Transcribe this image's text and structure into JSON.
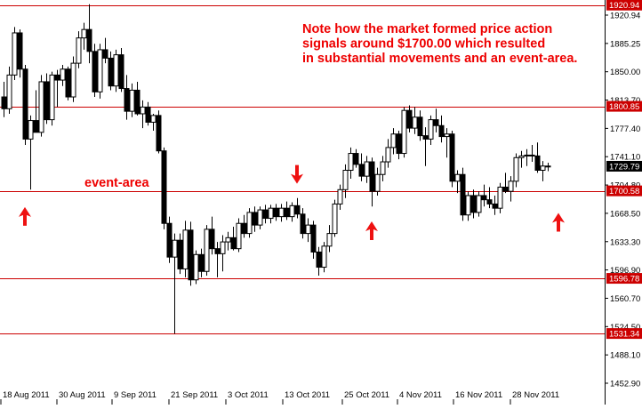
{
  "chart_data": {
    "type": "candlestick",
    "instrument_note": "",
    "x_tick_labels": [
      "18 Aug 2011",
      "30 Aug 2011",
      "9 Sep 2011",
      "21 Sep 2011",
      "3 Oct 2011",
      "13 Oct 2011",
      "25 Oct 2011",
      "4 Nov 2011",
      "16 Nov 2011",
      "28 Nov 2011"
    ],
    "y_tick_labels": [
      "1920.94",
      "1885.25",
      "1850.00",
      "1813.70",
      "1777.40",
      "1741.10",
      "1704.80",
      "1668.50",
      "1633.30",
      "1596.90",
      "1560.70",
      "1524.50",
      "1488.10",
      "1452.90"
    ],
    "ylim": [
      1446,
      1927
    ],
    "horizontal_levels": [
      {
        "value": 1920.94,
        "label": "1920.94"
      },
      {
        "value": 1800.85,
        "label": "1800.85"
      },
      {
        "value": 1700.58,
        "label": "1700.58"
      },
      {
        "value": 1596.78,
        "label": "1596.78"
      },
      {
        "value": 1531.34,
        "label": "1531.34"
      }
    ],
    "current_price": {
      "value": 1729.79,
      "label": "1729.79"
    },
    "annotation_text": [
      "Note how the market formed price action",
      "signals around $1700.00 which resulted",
      "in substantial movements and an event-area."
    ],
    "event_label": "event-area",
    "arrows": [
      {
        "bar": 4,
        "direction": "up",
        "price": 1694
      },
      {
        "bar": 55,
        "direction": "down",
        "price": 1707
      },
      {
        "bar": 69,
        "direction": "up",
        "price": 1677
      },
      {
        "bar": 104,
        "direction": "up",
        "price": 1687
      }
    ],
    "candles": [
      {
        "o": 1812,
        "h": 1830,
        "l": 1788,
        "c": 1798
      },
      {
        "o": 1798,
        "h": 1848,
        "l": 1792,
        "c": 1838
      },
      {
        "o": 1838,
        "h": 1895,
        "l": 1832,
        "c": 1888
      },
      {
        "o": 1888,
        "h": 1892,
        "l": 1835,
        "c": 1845
      },
      {
        "o": 1845,
        "h": 1850,
        "l": 1755,
        "c": 1762
      },
      {
        "o": 1762,
        "h": 1790,
        "l": 1702,
        "c": 1784
      },
      {
        "o": 1784,
        "h": 1820,
        "l": 1772,
        "c": 1770
      },
      {
        "o": 1770,
        "h": 1838,
        "l": 1765,
        "c": 1830
      },
      {
        "o": 1830,
        "h": 1840,
        "l": 1780,
        "c": 1785
      },
      {
        "o": 1785,
        "h": 1842,
        "l": 1778,
        "c": 1838
      },
      {
        "o": 1838,
        "h": 1844,
        "l": 1800,
        "c": 1832
      },
      {
        "o": 1832,
        "h": 1850,
        "l": 1825,
        "c": 1845
      },
      {
        "o": 1845,
        "h": 1848,
        "l": 1808,
        "c": 1812
      },
      {
        "o": 1812,
        "h": 1860,
        "l": 1806,
        "c": 1852
      },
      {
        "o": 1852,
        "h": 1890,
        "l": 1846,
        "c": 1882
      },
      {
        "o": 1882,
        "h": 1900,
        "l": 1868,
        "c": 1892
      },
      {
        "o": 1892,
        "h": 1922,
        "l": 1852,
        "c": 1866
      },
      {
        "o": 1866,
        "h": 1875,
        "l": 1812,
        "c": 1818
      },
      {
        "o": 1818,
        "h": 1875,
        "l": 1810,
        "c": 1868
      },
      {
        "o": 1868,
        "h": 1882,
        "l": 1852,
        "c": 1858
      },
      {
        "o": 1858,
        "h": 1866,
        "l": 1820,
        "c": 1825
      },
      {
        "o": 1825,
        "h": 1868,
        "l": 1818,
        "c": 1862
      },
      {
        "o": 1862,
        "h": 1870,
        "l": 1818,
        "c": 1822
      },
      {
        "o": 1822,
        "h": 1838,
        "l": 1785,
        "c": 1795
      },
      {
        "o": 1795,
        "h": 1828,
        "l": 1788,
        "c": 1820
      },
      {
        "o": 1820,
        "h": 1830,
        "l": 1790,
        "c": 1792
      },
      {
        "o": 1792,
        "h": 1808,
        "l": 1775,
        "c": 1800
      },
      {
        "o": 1800,
        "h": 1806,
        "l": 1778,
        "c": 1782
      },
      {
        "o": 1782,
        "h": 1792,
        "l": 1772,
        "c": 1790
      },
      {
        "o": 1790,
        "h": 1796,
        "l": 1745,
        "c": 1748
      },
      {
        "o": 1748,
        "h": 1752,
        "l": 1655,
        "c": 1662
      },
      {
        "o": 1662,
        "h": 1670,
        "l": 1615,
        "c": 1622
      },
      {
        "o": 1622,
        "h": 1650,
        "l": 1531,
        "c": 1642
      },
      {
        "o": 1642,
        "h": 1650,
        "l": 1602,
        "c": 1608
      },
      {
        "o": 1608,
        "h": 1665,
        "l": 1598,
        "c": 1654
      },
      {
        "o": 1654,
        "h": 1664,
        "l": 1588,
        "c": 1595
      },
      {
        "o": 1595,
        "h": 1630,
        "l": 1590,
        "c": 1625
      },
      {
        "o": 1625,
        "h": 1632,
        "l": 1598,
        "c": 1605
      },
      {
        "o": 1605,
        "h": 1660,
        "l": 1600,
        "c": 1655
      },
      {
        "o": 1655,
        "h": 1670,
        "l": 1625,
        "c": 1632
      },
      {
        "o": 1632,
        "h": 1640,
        "l": 1598,
        "c": 1626
      },
      {
        "o": 1626,
        "h": 1648,
        "l": 1605,
        "c": 1640
      },
      {
        "o": 1640,
        "h": 1652,
        "l": 1630,
        "c": 1645
      },
      {
        "o": 1645,
        "h": 1658,
        "l": 1630,
        "c": 1632
      },
      {
        "o": 1632,
        "h": 1668,
        "l": 1628,
        "c": 1662
      },
      {
        "o": 1662,
        "h": 1672,
        "l": 1645,
        "c": 1650
      },
      {
        "o": 1650,
        "h": 1680,
        "l": 1645,
        "c": 1675
      },
      {
        "o": 1675,
        "h": 1682,
        "l": 1652,
        "c": 1660
      },
      {
        "o": 1660,
        "h": 1682,
        "l": 1655,
        "c": 1678
      },
      {
        "o": 1678,
        "h": 1684,
        "l": 1662,
        "c": 1668
      },
      {
        "o": 1668,
        "h": 1684,
        "l": 1662,
        "c": 1680
      },
      {
        "o": 1680,
        "h": 1685,
        "l": 1665,
        "c": 1670
      },
      {
        "o": 1670,
        "h": 1685,
        "l": 1664,
        "c": 1680
      },
      {
        "o": 1680,
        "h": 1688,
        "l": 1666,
        "c": 1670
      },
      {
        "o": 1670,
        "h": 1687,
        "l": 1664,
        "c": 1683
      },
      {
        "o": 1683,
        "h": 1692,
        "l": 1668,
        "c": 1673
      },
      {
        "o": 1673,
        "h": 1680,
        "l": 1644,
        "c": 1650
      },
      {
        "o": 1650,
        "h": 1668,
        "l": 1640,
        "c": 1660
      },
      {
        "o": 1660,
        "h": 1665,
        "l": 1620,
        "c": 1628
      },
      {
        "o": 1628,
        "h": 1634,
        "l": 1600,
        "c": 1610
      },
      {
        "o": 1610,
        "h": 1640,
        "l": 1604,
        "c": 1635
      },
      {
        "o": 1635,
        "h": 1660,
        "l": 1628,
        "c": 1650
      },
      {
        "o": 1650,
        "h": 1690,
        "l": 1646,
        "c": 1685
      },
      {
        "o": 1685,
        "h": 1708,
        "l": 1678,
        "c": 1702
      },
      {
        "o": 1702,
        "h": 1732,
        "l": 1692,
        "c": 1725
      },
      {
        "o": 1725,
        "h": 1752,
        "l": 1715,
        "c": 1745
      },
      {
        "o": 1745,
        "h": 1750,
        "l": 1728,
        "c": 1732
      },
      {
        "o": 1732,
        "h": 1745,
        "l": 1712,
        "c": 1718
      },
      {
        "o": 1718,
        "h": 1742,
        "l": 1710,
        "c": 1735
      },
      {
        "o": 1735,
        "h": 1740,
        "l": 1682,
        "c": 1700
      },
      {
        "o": 1700,
        "h": 1728,
        "l": 1695,
        "c": 1720
      },
      {
        "o": 1720,
        "h": 1742,
        "l": 1712,
        "c": 1735
      },
      {
        "o": 1735,
        "h": 1762,
        "l": 1728,
        "c": 1752
      },
      {
        "o": 1752,
        "h": 1775,
        "l": 1744,
        "c": 1768
      },
      {
        "o": 1768,
        "h": 1772,
        "l": 1738,
        "c": 1745
      },
      {
        "o": 1745,
        "h": 1800,
        "l": 1740,
        "c": 1796
      },
      {
        "o": 1796,
        "h": 1802,
        "l": 1770,
        "c": 1775
      },
      {
        "o": 1775,
        "h": 1800,
        "l": 1768,
        "c": 1788
      },
      {
        "o": 1788,
        "h": 1796,
        "l": 1760,
        "c": 1766
      },
      {
        "o": 1766,
        "h": 1776,
        "l": 1730,
        "c": 1762
      },
      {
        "o": 1762,
        "h": 1790,
        "l": 1755,
        "c": 1785
      },
      {
        "o": 1785,
        "h": 1798,
        "l": 1770,
        "c": 1778
      },
      {
        "o": 1778,
        "h": 1790,
        "l": 1758,
        "c": 1765
      },
      {
        "o": 1765,
        "h": 1775,
        "l": 1740,
        "c": 1768
      },
      {
        "o": 1768,
        "h": 1772,
        "l": 1705,
        "c": 1712
      },
      {
        "o": 1712,
        "h": 1725,
        "l": 1698,
        "c": 1720
      },
      {
        "o": 1720,
        "h": 1728,
        "l": 1665,
        "c": 1672
      },
      {
        "o": 1672,
        "h": 1700,
        "l": 1665,
        "c": 1695
      },
      {
        "o": 1695,
        "h": 1702,
        "l": 1668,
        "c": 1675
      },
      {
        "o": 1675,
        "h": 1700,
        "l": 1670,
        "c": 1695
      },
      {
        "o": 1695,
        "h": 1708,
        "l": 1682,
        "c": 1690
      },
      {
        "o": 1690,
        "h": 1705,
        "l": 1680,
        "c": 1685
      },
      {
        "o": 1685,
        "h": 1695,
        "l": 1672,
        "c": 1680
      },
      {
        "o": 1680,
        "h": 1710,
        "l": 1674,
        "c": 1705
      },
      {
        "o": 1705,
        "h": 1722,
        "l": 1698,
        "c": 1700
      },
      {
        "o": 1700,
        "h": 1718,
        "l": 1688,
        "c": 1712
      },
      {
        "o": 1712,
        "h": 1745,
        "l": 1705,
        "c": 1740
      },
      {
        "o": 1740,
        "h": 1748,
        "l": 1728,
        "c": 1742
      },
      {
        "o": 1742,
        "h": 1750,
        "l": 1730,
        "c": 1743
      },
      {
        "o": 1743,
        "h": 1755,
        "l": 1735,
        "c": 1742
      },
      {
        "o": 1742,
        "h": 1758,
        "l": 1722,
        "c": 1725
      },
      {
        "o": 1725,
        "h": 1736,
        "l": 1712,
        "c": 1730
      },
      {
        "o": 1730,
        "h": 1734,
        "l": 1724,
        "c": 1729
      }
    ],
    "grid": false,
    "legend": "none",
    "colors": {
      "level_line": "#cc0000",
      "label_box": "#cc0000",
      "label_text": "#ffffff",
      "annotation": "#ee0000",
      "arrow": "#ee1111",
      "candle": "#000000",
      "current_box": "#000000"
    }
  }
}
